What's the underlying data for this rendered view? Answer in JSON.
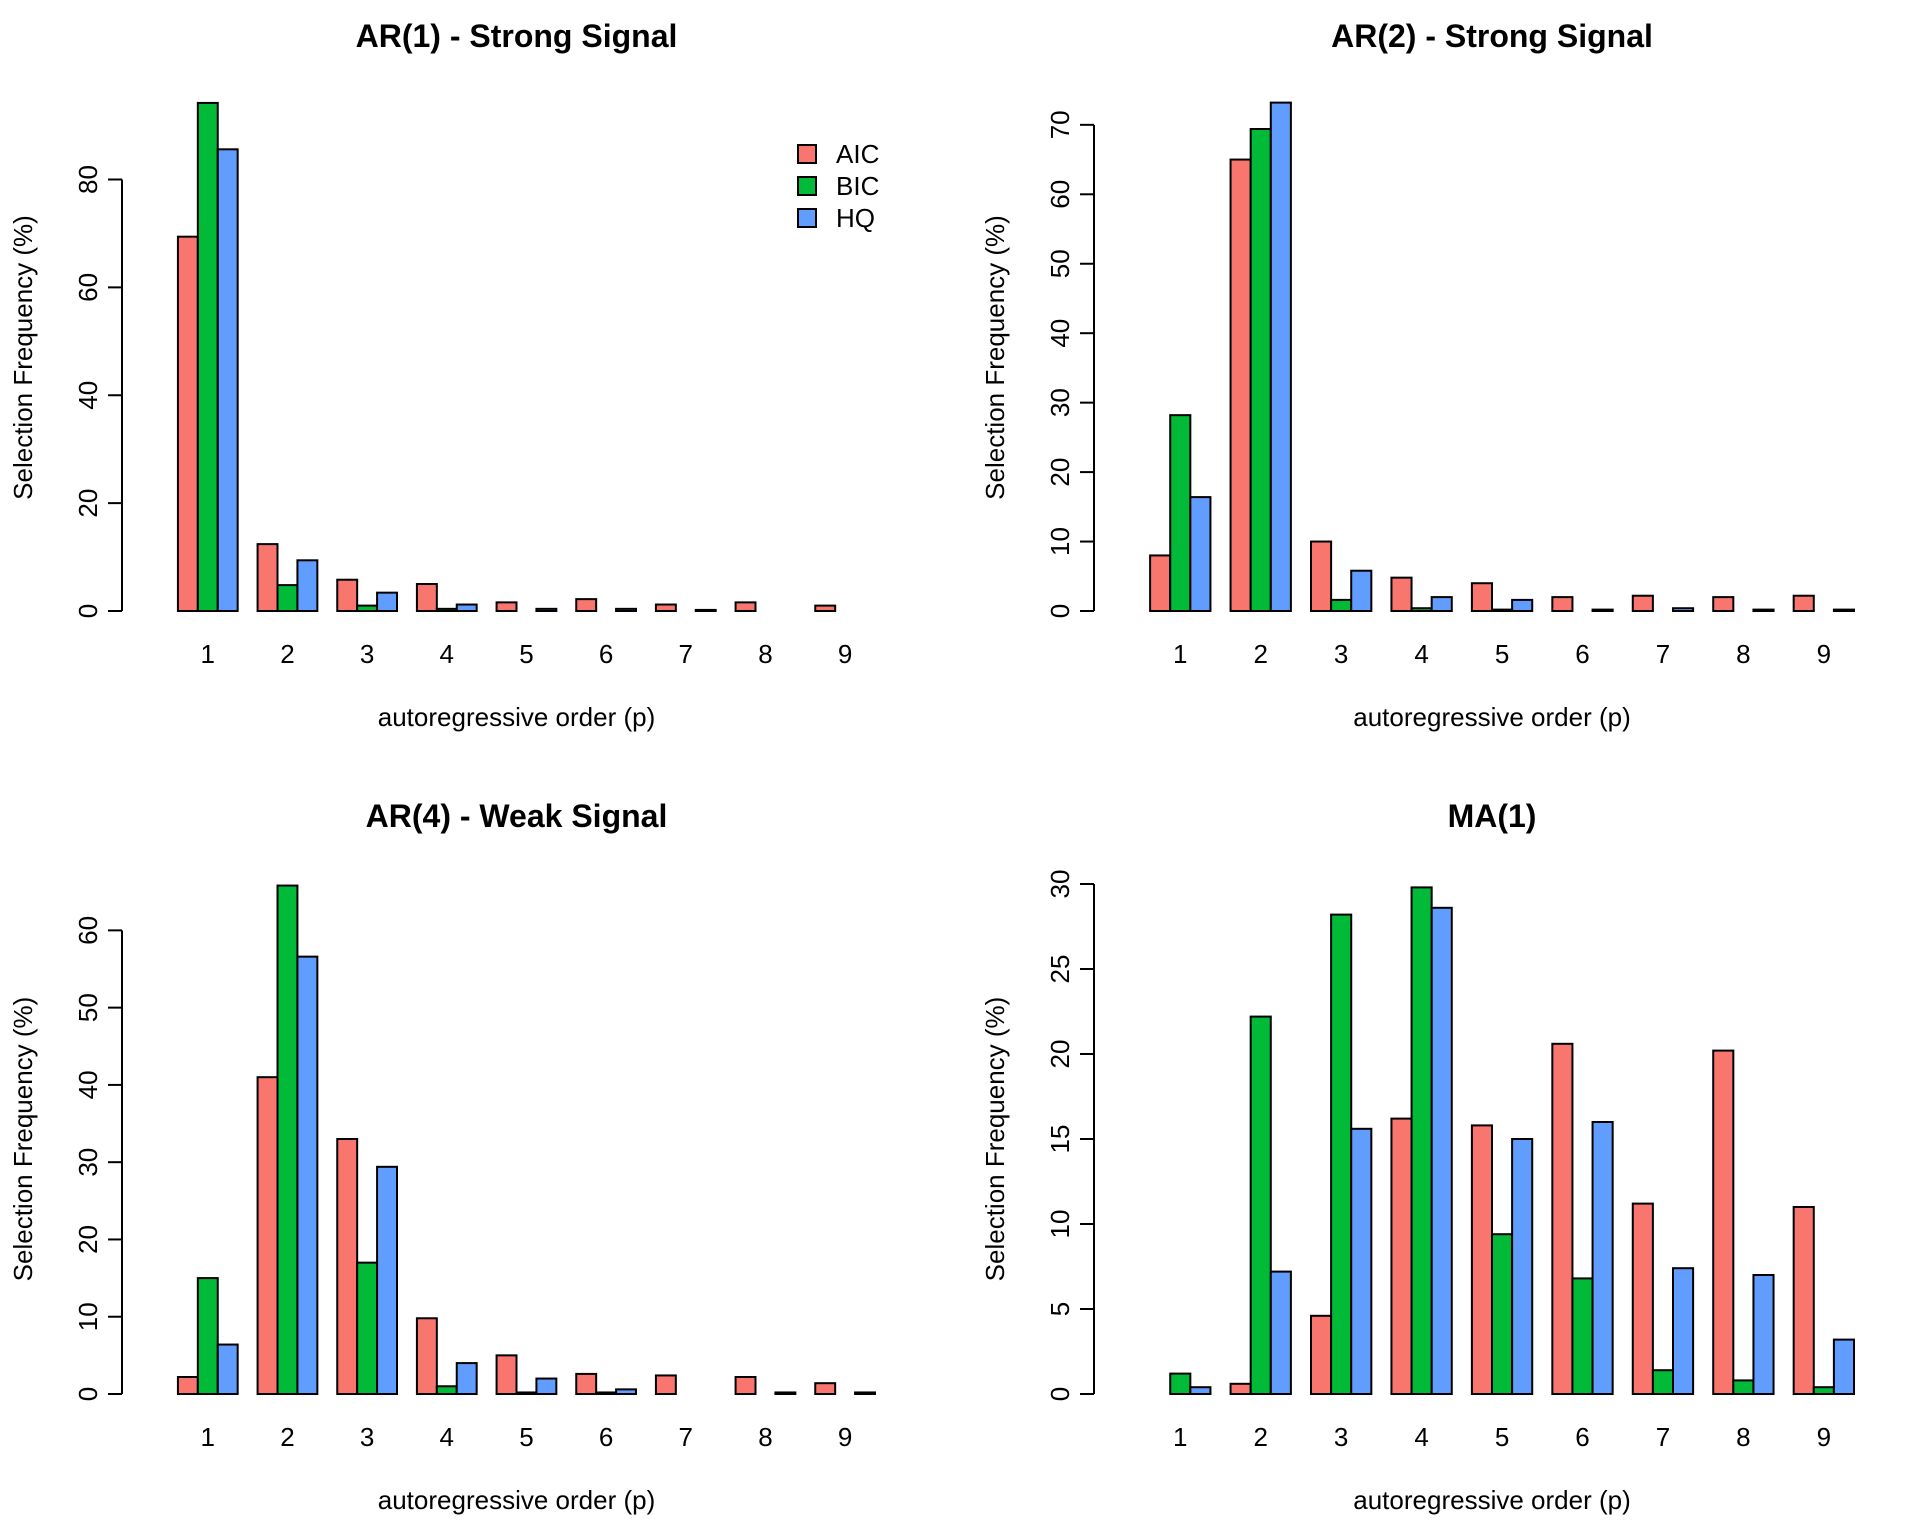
{
  "colors": {
    "AIC": "#F8766D",
    "BIC": "#00BA38",
    "HQ": "#619CFF"
  },
  "legend": {
    "placement": "top-right",
    "panel": 0,
    "entries": [
      "AIC",
      "BIC",
      "HQ"
    ]
  },
  "chart_data": [
    {
      "type": "bar",
      "title": "AR(1) - Strong Signal",
      "xlabel": "autoregressive order (p)",
      "ylabel": "Selection Frequency (%)",
      "categories": [
        "1",
        "2",
        "3",
        "4",
        "5",
        "6",
        "7",
        "8",
        "9"
      ],
      "ylim": [
        0,
        94
      ],
      "yticks": [
        0,
        20,
        40,
        60,
        80
      ],
      "series": [
        {
          "name": "AIC",
          "values": [
            69.4,
            12.4,
            5.8,
            5.0,
            1.6,
            2.2,
            1.2,
            1.6,
            1.0
          ]
        },
        {
          "name": "BIC",
          "values": [
            94.2,
            4.8,
            1.0,
            0.4,
            0.0,
            0.0,
            0.0,
            0.0,
            0.0
          ]
        },
        {
          "name": "HQ",
          "values": [
            85.6,
            9.4,
            3.4,
            1.2,
            0.4,
            0.4,
            0.2,
            0.0,
            0.0
          ]
        }
      ]
    },
    {
      "type": "bar",
      "title": "AR(2) - Strong Signal",
      "xlabel": "autoregressive order (p)",
      "ylabel": "Selection Frequency (%)",
      "categories": [
        "1",
        "2",
        "3",
        "4",
        "5",
        "6",
        "7",
        "8",
        "9"
      ],
      "ylim": [
        0,
        73
      ],
      "yticks": [
        0,
        10,
        20,
        30,
        40,
        50,
        60,
        70
      ],
      "series": [
        {
          "name": "AIC",
          "values": [
            8.0,
            65.0,
            10.0,
            4.8,
            4.0,
            2.0,
            2.2,
            2.0,
            2.2
          ]
        },
        {
          "name": "BIC",
          "values": [
            28.2,
            69.4,
            1.6,
            0.4,
            0.2,
            0.0,
            0.0,
            0.0,
            0.0
          ]
        },
        {
          "name": "HQ",
          "values": [
            16.4,
            73.2,
            5.8,
            2.0,
            1.6,
            0.2,
            0.4,
            0.2,
            0.2
          ]
        }
      ]
    },
    {
      "type": "bar",
      "title": "AR(4) - Weak Signal",
      "xlabel": "autoregressive order (p)",
      "ylabel": "Selection Frequency (%)",
      "categories": [
        "1",
        "2",
        "3",
        "4",
        "5",
        "6",
        "7",
        "8",
        "9"
      ],
      "ylim": [
        0,
        66
      ],
      "yticks": [
        0,
        10,
        20,
        30,
        40,
        50,
        60
      ],
      "series": [
        {
          "name": "AIC",
          "values": [
            2.2,
            41.0,
            33.0,
            9.8,
            5.0,
            2.6,
            2.4,
            2.2,
            1.4
          ]
        },
        {
          "name": "BIC",
          "values": [
            15.0,
            65.8,
            17.0,
            1.0,
            0.2,
            0.2,
            0.0,
            0.0,
            0.0
          ]
        },
        {
          "name": "HQ",
          "values": [
            6.4,
            56.6,
            29.4,
            4.0,
            2.0,
            0.6,
            0.0,
            0.2,
            0.2
          ]
        }
      ]
    },
    {
      "type": "bar",
      "title": "MA(1)",
      "xlabel": "autoregressive order (p)",
      "ylabel": "Selection Frequency (%)",
      "categories": [
        "1",
        "2",
        "3",
        "4",
        "5",
        "6",
        "7",
        "8",
        "9"
      ],
      "ylim": [
        0,
        30
      ],
      "yticks": [
        0,
        5,
        10,
        15,
        20,
        25,
        30
      ],
      "series": [
        {
          "name": "AIC",
          "values": [
            0.0,
            0.6,
            4.6,
            16.2,
            15.8,
            20.6,
            11.2,
            20.2,
            11.0
          ]
        },
        {
          "name": "BIC",
          "values": [
            1.2,
            22.2,
            28.2,
            29.8,
            9.4,
            6.8,
            1.4,
            0.8,
            0.4
          ]
        },
        {
          "name": "HQ",
          "values": [
            0.4,
            7.2,
            15.6,
            28.6,
            15.0,
            16.0,
            7.4,
            7.0,
            3.2
          ]
        }
      ]
    }
  ]
}
